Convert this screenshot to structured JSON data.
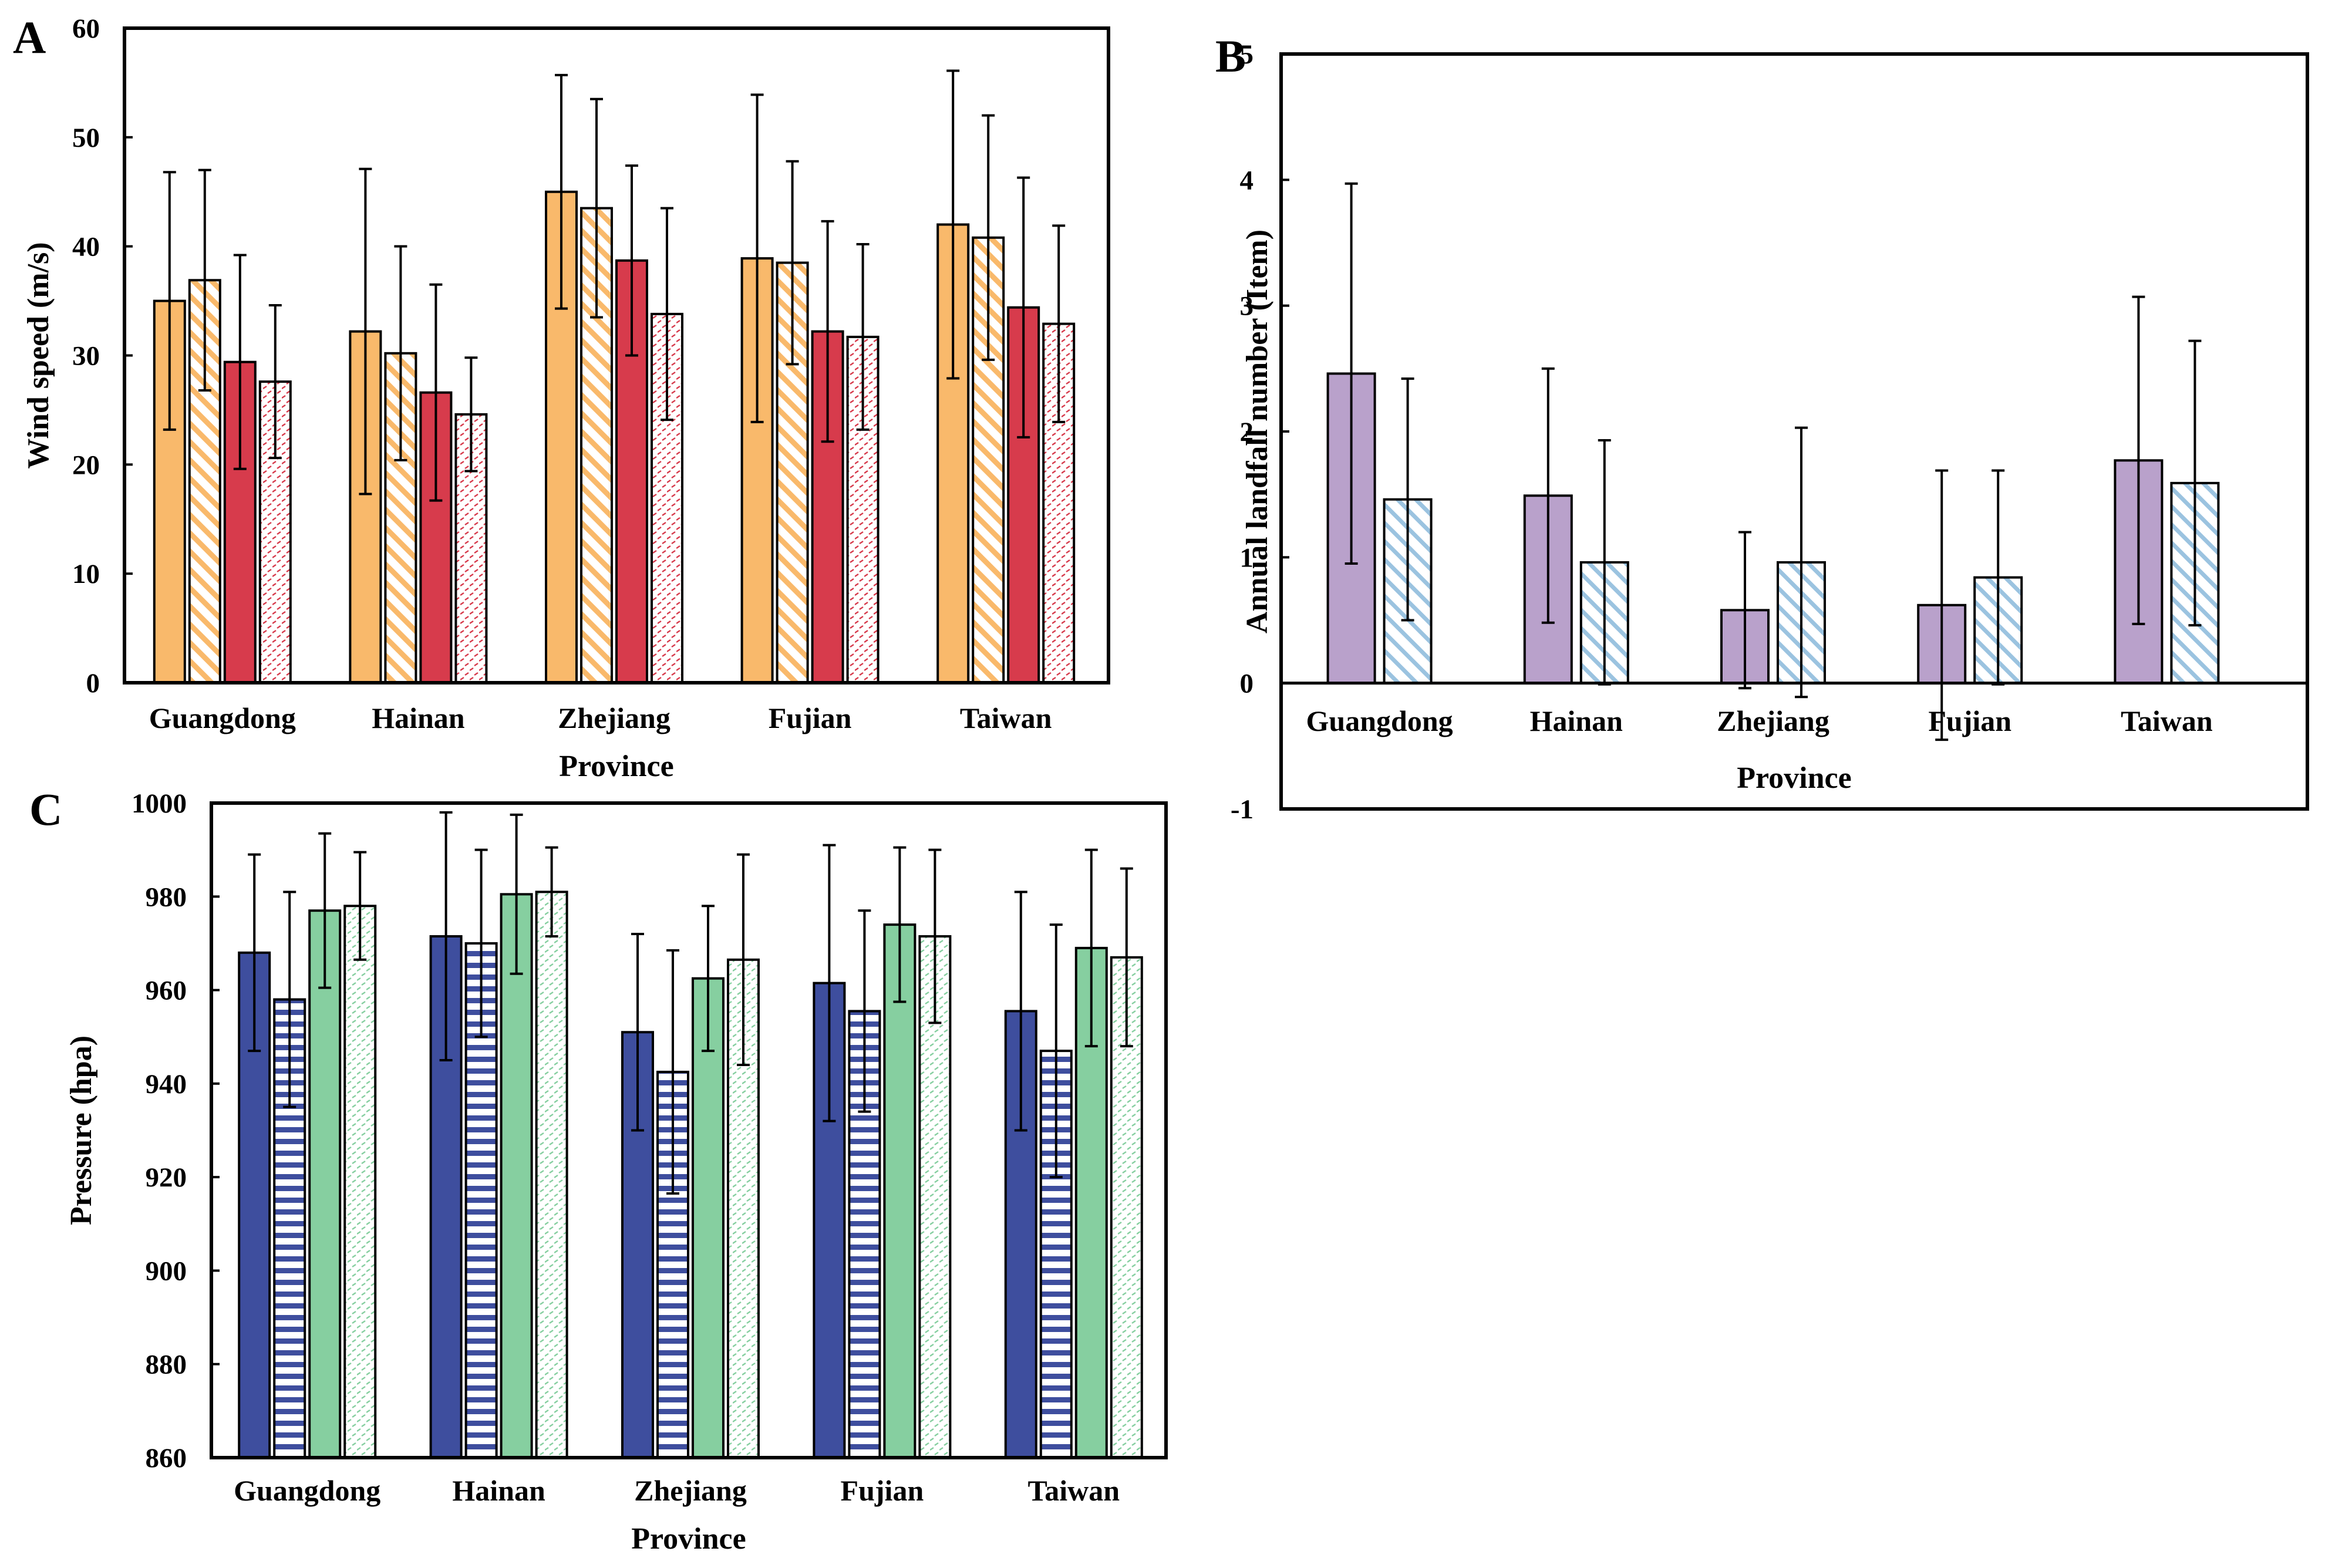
{
  "chart_data": [
    {
      "panel": "A",
      "type": "bar",
      "xlabel": "Province",
      "ylabel": "Wind speed (m/s)",
      "ylim": [
        0,
        60
      ],
      "yticks": [
        0,
        10,
        20,
        30,
        40,
        50,
        60
      ],
      "categories": [
        "Guangdong",
        "Hainan",
        "Zhejiang",
        "Fujian",
        "Taiwan"
      ],
      "series": [
        {
          "fill": "solid",
          "color": "#F9B96B",
          "values": [
            35.0,
            32.2,
            45.0,
            38.9,
            42.0
          ],
          "err": [
            11.8,
            14.9,
            10.7,
            15.0,
            14.1
          ]
        },
        {
          "fill": "diagonal",
          "color": "#F9B96B",
          "values": [
            36.9,
            30.2,
            43.5,
            38.5,
            40.8
          ],
          "err": [
            10.1,
            9.8,
            10.0,
            9.3,
            11.2
          ]
        },
        {
          "fill": "solid",
          "color": "#D73B4C",
          "values": [
            29.4,
            26.6,
            38.7,
            32.2,
            34.4
          ],
          "err": [
            9.8,
            9.9,
            8.7,
            10.1,
            11.9
          ]
        },
        {
          "fill": "dotted",
          "color": "#D73B4C",
          "values": [
            27.6,
            24.6,
            33.8,
            31.7,
            32.9
          ],
          "err": [
            7.0,
            5.2,
            9.7,
            8.5,
            9.0
          ]
        }
      ]
    },
    {
      "panel": "B",
      "type": "bar",
      "xlabel": "Province",
      "ylabel": "Annual landfall number (Item)",
      "ylim": [
        -1,
        5
      ],
      "yticks": [
        -1,
        0,
        1,
        2,
        3,
        4,
        5
      ],
      "categories": [
        "Guangdong",
        "Hainan",
        "Zhejiang",
        "Fujian",
        "Taiwan"
      ],
      "series": [
        {
          "fill": "solid",
          "color": "#B9A1CB",
          "values": [
            2.46,
            1.49,
            0.58,
            0.62,
            1.77
          ],
          "err": [
            1.51,
            1.01,
            0.62,
            1.07,
            1.3
          ]
        },
        {
          "fill": "diagonal",
          "color": "#9BC3E0",
          "values": [
            1.46,
            0.96,
            0.96,
            0.84,
            1.59
          ],
          "err": [
            0.96,
            0.97,
            1.07,
            0.85,
            1.13
          ]
        }
      ]
    },
    {
      "panel": "C",
      "type": "bar",
      "xlabel": "Province",
      "ylabel": "Pressure (hpa)",
      "ylim": [
        860,
        1000
      ],
      "yticks": [
        860,
        880,
        900,
        920,
        940,
        960,
        980,
        1000
      ],
      "categories": [
        "Guangdong",
        "Hainan",
        "Zhejiang",
        "Fujian",
        "Taiwan"
      ],
      "series": [
        {
          "fill": "solid",
          "color": "#3E4E9E",
          "values": [
            968,
            971.5,
            951,
            961.5,
            955.5
          ],
          "err": [
            21,
            26.5,
            21,
            29.5,
            25.5
          ]
        },
        {
          "fill": "horizontal",
          "color": "#3E4E9E",
          "values": [
            958,
            970,
            942.5,
            955.5,
            947
          ],
          "err": [
            23,
            20,
            26,
            21.5,
            27
          ]
        },
        {
          "fill": "solid",
          "color": "#86CFA0",
          "values": [
            977,
            980.5,
            962.5,
            974,
            969
          ],
          "err": [
            16.5,
            17,
            15.5,
            16.5,
            21
          ]
        },
        {
          "fill": "dotted",
          "color": "#86CFA0",
          "values": [
            978,
            981,
            966.5,
            971.5,
            967
          ],
          "err": [
            11.5,
            9.5,
            22.5,
            18.5,
            19
          ]
        }
      ]
    }
  ]
}
